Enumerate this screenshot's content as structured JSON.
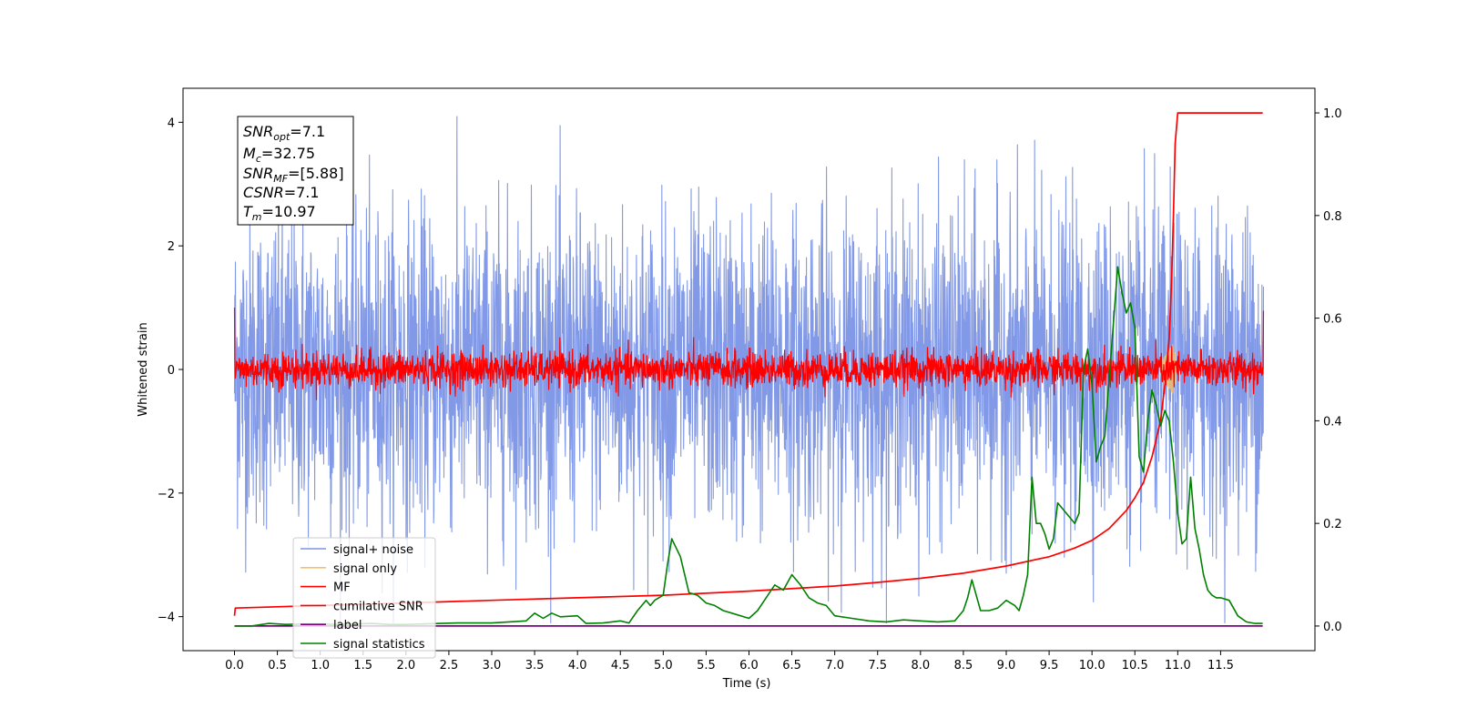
{
  "chart_data": {
    "type": "line",
    "title": "",
    "xlabel": "Time (s)",
    "ylabel": "Whitened strain",
    "xlim": [
      -0.6,
      12.6
    ],
    "ylim": [
      -4.55,
      4.55
    ],
    "y2lim": [
      -0.048,
      1.048
    ],
    "grid": false,
    "legend_position": "lower-left",
    "x_ticks": [
      "0.0",
      "0.5",
      "1.0",
      "1.5",
      "2.0",
      "2.5",
      "3.0",
      "3.5",
      "4.0",
      "4.5",
      "5.0",
      "5.5",
      "6.0",
      "6.5",
      "7.0",
      "7.5",
      "8.0",
      "8.5",
      "9.0",
      "9.5",
      "10.0",
      "10.5",
      "11.0",
      "11.5"
    ],
    "y_ticks": [
      "−4",
      "−2",
      "0",
      "2",
      "4"
    ],
    "y2_ticks": [
      "0.0",
      "0.2",
      "0.4",
      "0.6",
      "0.8",
      "1.0"
    ],
    "annotation": {
      "snr_opt": "7.1",
      "mc": "32.75",
      "snr_mf": "[5.88]",
      "csnr": "7.1",
      "tm": "10.97"
    },
    "series": [
      {
        "name": "signal+ noise",
        "color": "#7b94e6",
        "axis": "left",
        "kind": "noise",
        "x_range": [
          0,
          12
        ],
        "amplitude": 4.1
      },
      {
        "name": "signal only",
        "color": "#f5c06a",
        "axis": "left",
        "kind": "chirp",
        "x_range": [
          10.8,
          10.97
        ],
        "amplitude": 0.35
      },
      {
        "name": "MF",
        "color": "#ff0000",
        "axis": "left",
        "kind": "noise",
        "x_range": [
          0,
          12
        ],
        "amplitude": 0.45
      },
      {
        "name": "cumilative SNR",
        "color": "#ff0000",
        "axis": "right",
        "x": [
          0.0,
          0.01,
          1.0,
          2.0,
          3.0,
          4.0,
          5.0,
          6.0,
          7.0,
          7.5,
          8.0,
          8.5,
          9.0,
          9.5,
          9.8,
          10.0,
          10.2,
          10.4,
          10.5,
          10.6,
          10.7,
          10.8,
          10.85,
          10.9,
          10.93,
          10.95,
          10.97,
          11.0,
          11.99
        ],
        "values": [
          0.02,
          0.035,
          0.04,
          0.045,
          0.05,
          0.055,
          0.06,
          0.068,
          0.078,
          0.085,
          0.093,
          0.103,
          0.117,
          0.135,
          0.152,
          0.167,
          0.19,
          0.225,
          0.25,
          0.28,
          0.33,
          0.4,
          0.47,
          0.56,
          0.68,
          0.8,
          0.94,
          1.0,
          1.0
        ]
      },
      {
        "name": "label",
        "color": "#800080",
        "axis": "right",
        "x": [
          0,
          11.99
        ],
        "values": [
          0.0,
          0.0
        ]
      },
      {
        "name": "signal statistics",
        "color": "#008000",
        "axis": "right",
        "x": [
          0.0,
          0.2,
          0.4,
          0.6,
          0.8,
          1.0,
          1.2,
          1.4,
          1.6,
          1.8,
          2.0,
          2.2,
          2.4,
          2.6,
          2.8,
          3.0,
          3.2,
          3.4,
          3.5,
          3.6,
          3.7,
          3.8,
          4.0,
          4.1,
          4.3,
          4.5,
          4.6,
          4.7,
          4.8,
          4.85,
          4.9,
          5.0,
          5.05,
          5.1,
          5.2,
          5.3,
          5.4,
          5.5,
          5.6,
          5.7,
          5.8,
          6.0,
          6.1,
          6.2,
          6.3,
          6.4,
          6.5,
          6.6,
          6.7,
          6.8,
          6.9,
          7.0,
          7.2,
          7.4,
          7.6,
          7.8,
          8.0,
          8.2,
          8.4,
          8.5,
          8.55,
          8.6,
          8.7,
          8.8,
          8.9,
          9.0,
          9.1,
          9.15,
          9.2,
          9.25,
          9.3,
          9.35,
          9.4,
          9.45,
          9.5,
          9.55,
          9.6,
          9.7,
          9.8,
          9.85,
          9.9,
          9.95,
          10.0,
          10.05,
          10.1,
          10.15,
          10.2,
          10.3,
          10.35,
          10.4,
          10.45,
          10.5,
          10.55,
          10.6,
          10.65,
          10.7,
          10.75,
          10.8,
          10.85,
          10.9,
          10.95,
          11.0,
          11.05,
          11.1,
          11.15,
          11.2,
          11.25,
          11.3,
          11.35,
          11.4,
          11.45,
          11.5,
          11.6,
          11.7,
          11.8,
          11.9,
          11.99
        ],
        "values": [
          0.0,
          0.0,
          0.005,
          0.003,
          0.004,
          0.004,
          0.003,
          0.004,
          0.005,
          0.003,
          0.003,
          0.004,
          0.005,
          0.006,
          0.006,
          0.006,
          0.008,
          0.01,
          0.025,
          0.015,
          0.025,
          0.018,
          0.02,
          0.005,
          0.006,
          0.01,
          0.006,
          0.03,
          0.05,
          0.04,
          0.05,
          0.06,
          0.12,
          0.17,
          0.135,
          0.065,
          0.06,
          0.045,
          0.04,
          0.03,
          0.025,
          0.015,
          0.03,
          0.055,
          0.08,
          0.07,
          0.1,
          0.08,
          0.055,
          0.045,
          0.04,
          0.02,
          0.015,
          0.01,
          0.008,
          0.012,
          0.01,
          0.008,
          0.01,
          0.03,
          0.055,
          0.09,
          0.03,
          0.03,
          0.035,
          0.05,
          0.04,
          0.03,
          0.06,
          0.1,
          0.29,
          0.2,
          0.2,
          0.18,
          0.15,
          0.17,
          0.24,
          0.22,
          0.2,
          0.22,
          0.5,
          0.54,
          0.47,
          0.32,
          0.35,
          0.37,
          0.48,
          0.7,
          0.65,
          0.61,
          0.63,
          0.58,
          0.33,
          0.3,
          0.4,
          0.46,
          0.43,
          0.39,
          0.42,
          0.4,
          0.32,
          0.22,
          0.16,
          0.17,
          0.29,
          0.19,
          0.15,
          0.1,
          0.07,
          0.06,
          0.055,
          0.055,
          0.05,
          0.02,
          0.008,
          0.005,
          0.005
        ]
      }
    ]
  }
}
